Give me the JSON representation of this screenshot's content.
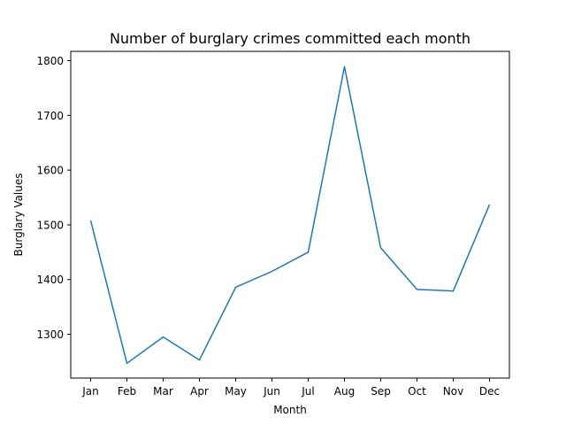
{
  "chart_data": {
    "type": "line",
    "title": "Number of burglary crimes committed each month",
    "xlabel": "Month",
    "ylabel": "Burglary Values",
    "categories": [
      "Jan",
      "Feb",
      "Mar",
      "Apr",
      "May",
      "Jun",
      "Jul",
      "Aug",
      "Sep",
      "Oct",
      "Nov",
      "Dec"
    ],
    "series": [
      {
        "values": [
          1508,
          1247,
          1295,
          1253,
          1386,
          1415,
          1450,
          1789,
          1458,
          1382,
          1379,
          1537
        ],
        "color": "#1f77b4"
      }
    ],
    "ylim": [
      1220,
      1817
    ],
    "yticks": [
      1300,
      1400,
      1500,
      1600,
      1700,
      1800
    ],
    "grid": false,
    "legend": "none"
  }
}
